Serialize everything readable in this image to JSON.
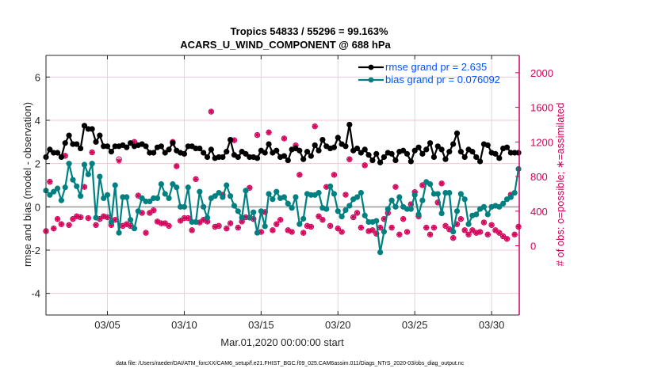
{
  "chart_data": {
    "type": "line",
    "title": "Tropics 54833 / 55296 = 99.163%",
    "subtitle": "ACARS_U_WIND_COMPONENT @ 688 hPa",
    "xlabel": "Mar.01,2020 00:00:00 start",
    "ylabel": "rmse and bias (model - observation)",
    "ylabel_right": "# of obs: o=possible; ∗=assimilated",
    "footer": "data file: /Users/raeder/DAI/ATM_forcXX/CAM6_setup/f.e21.FHIST_BGC.f09_025.CAM6assim.011/Diags_NTrS_2020-03/obs_diag_output.nc",
    "xlim": [
      1.0,
      31.8
    ],
    "ylim": [
      -5,
      7
    ],
    "ylim_right": [
      -800,
      2200
    ],
    "x_ticks": [
      {
        "value": 5,
        "label": "03/05"
      },
      {
        "value": 10,
        "label": "03/10"
      },
      {
        "value": 15,
        "label": "03/15"
      },
      {
        "value": 20,
        "label": "03/20"
      },
      {
        "value": 25,
        "label": "03/25"
      },
      {
        "value": 30,
        "label": "03/30"
      }
    ],
    "y_ticks": [
      {
        "value": 6,
        "label": "6"
      },
      {
        "value": 4,
        "label": "4"
      },
      {
        "value": 2,
        "label": "2"
      },
      {
        "value": 0,
        "label": "0"
      },
      {
        "value": -2,
        "label": "-2"
      },
      {
        "value": -4,
        "label": "-4"
      }
    ],
    "y_ticks_right": [
      {
        "value": 2000,
        "label": "2000"
      },
      {
        "value": 1600,
        "label": "1600"
      },
      {
        "value": 1200,
        "label": "1200"
      },
      {
        "value": 800,
        "label": "800"
      },
      {
        "value": 400,
        "label": "400"
      },
      {
        "value": 0,
        "label": "0"
      }
    ],
    "grid": true,
    "legend_position": "top-right",
    "colors": {
      "rmse": "#000000",
      "bias": "#008080",
      "obs": "#d3005a",
      "zero_line": "#b0b0b0",
      "grid": "#d9d9d9",
      "hgrid": "#f2c6d6",
      "legend_text": "#0055ff"
    },
    "series": [
      {
        "name": "rmse grand pr = 2.635",
        "key": "rmse",
        "axis": "left",
        "x_start": 1.0,
        "x_step": 0.25,
        "values": [
          2.3,
          2.65,
          2.5,
          2.5,
          2.3,
          2.95,
          3.3,
          2.9,
          2.9,
          2.7,
          3.75,
          3.6,
          3.6,
          3.0,
          3.3,
          2.8,
          2.8,
          2.55,
          2.8,
          2.8,
          2.85,
          2.75,
          2.95,
          2.8,
          2.85,
          2.9,
          2.8,
          2.5,
          2.5,
          2.75,
          2.8,
          2.5,
          2.65,
          2.95,
          2.6,
          2.5,
          2.45,
          2.8,
          2.8,
          2.7,
          2.7,
          2.5,
          2.3,
          2.65,
          2.25,
          2.3,
          2.3,
          2.55,
          3.1,
          2.4,
          2.3,
          2.55,
          2.45,
          2.3,
          2.3,
          2.25,
          2.6,
          2.5,
          2.9,
          2.5,
          2.6,
          2.3,
          2.35,
          2.15,
          2.65,
          2.7,
          2.6,
          2.2,
          2.55,
          2.35,
          2.85,
          2.6,
          3.1,
          2.8,
          2.7,
          2.75,
          3.2,
          2.9,
          2.8,
          3.8,
          2.6,
          2.7,
          2.5,
          2.65,
          2.4,
          2.15,
          2.45,
          2.05,
          2.3,
          2.5,
          2.45,
          2.15,
          2.55,
          2.6,
          2.45,
          2.1,
          2.6,
          2.75,
          2.45,
          2.65,
          2.95,
          2.3,
          2.8,
          2.65,
          2.2,
          2.55,
          2.9,
          3.4,
          2.55,
          2.3,
          2.65,
          2.55,
          2.3,
          2.1,
          2.9,
          2.85,
          2.5,
          2.45,
          2.25,
          2.7,
          2.75,
          2.5,
          2.5,
          2.5
        ]
      },
      {
        "name": "bias grand pr = 0.076092",
        "key": "bias",
        "axis": "left",
        "x_start": 1.0,
        "x_step": 0.25,
        "values": [
          0.75,
          0.55,
          0.7,
          0.85,
          0.3,
          0.9,
          2.0,
          1.25,
          0.95,
          0.5,
          1.95,
          1.5,
          2.0,
          -0.5,
          1.4,
          0.4,
          0.55,
          -0.7,
          1.0,
          -1.2,
          0.45,
          0.45,
          -0.6,
          -1.0,
          -0.2,
          0.4,
          0.25,
          0.25,
          0.4,
          0.4,
          1.05,
          0.6,
          0.4,
          1.05,
          0.9,
          0.0,
          0.0,
          0.9,
          -0.7,
          -0.7,
          0.7,
          0.0,
          -0.5,
          0.4,
          0.5,
          0.65,
          0.45,
          1.0,
          0.5,
          0.05,
          -0.2,
          -0.5,
          0.75,
          -0.5,
          -0.25,
          -1.2,
          -0.2,
          -0.9,
          0.6,
          0.35,
          0.7,
          0.4,
          0.45,
          0.15,
          -0.05,
          0.45,
          -0.8,
          -0.55,
          0.6,
          0.55,
          0.55,
          0.65,
          -0.05,
          -0.1,
          0.95,
          0.6,
          -0.2,
          -0.45,
          -0.15,
          0.05,
          0.35,
          0.45,
          0.65,
          -0.4,
          -0.7,
          -0.7,
          -0.65,
          -2.1,
          -1.15,
          -0.1,
          0.3,
          0.0,
          0.45,
          0.0,
          -0.1,
          -0.1,
          0.55,
          -0.35,
          0.3,
          1.15,
          1.05,
          0.6,
          0.6,
          -0.3,
          0.65,
          0.65,
          -1.15,
          -0.2,
          0.6,
          0.35,
          -0.8,
          -0.4,
          -0.35,
          -0.1,
          0.0,
          -0.35,
          0.0,
          0.05,
          0.0,
          0.15,
          0.35,
          0.45,
          0.65,
          1.75
        ]
      }
    ],
    "obs_possible": {
      "name": "possible",
      "marker": "o",
      "axis": "right",
      "x_start": 1.0,
      "x_step": 0.25,
      "values": [
        170,
        740,
        200,
        310,
        250,
        1040,
        240,
        310,
        340,
        330,
        680,
        320,
        1080,
        240,
        310,
        340,
        330,
        240,
        300,
        1000,
        230,
        250,
        230,
        1200,
        580,
        380,
        150,
        380,
        410,
        280,
        260,
        260,
        230,
        1200,
        920,
        290,
        320,
        320,
        180,
        770,
        270,
        300,
        280,
        1550,
        220,
        230,
        590,
        200,
        260,
        1220,
        210,
        280,
        330,
        670,
        310,
        1280,
        160,
        390,
        1310,
        180,
        250,
        300,
        1240,
        180,
        160,
        1160,
        820,
        150,
        230,
        220,
        1380,
        340,
        300,
        680,
        230,
        820,
        200,
        160,
        590,
        1000,
        330,
        380,
        210,
        930,
        170,
        180,
        140,
        210,
        310,
        380,
        210,
        680,
        130,
        310,
        160,
        480,
        620,
        340,
        700,
        210,
        130,
        210,
        500,
        720,
        230,
        190,
        90,
        250,
        310,
        180,
        130,
        180,
        150,
        160,
        270,
        130,
        240,
        180,
        150,
        110,
        80,
        590,
        130,
        220,
        210,
        0
      ]
    },
    "obs_assimilated": {
      "name": "assimilated",
      "marker": "*",
      "axis": "right",
      "x_start": 1.0,
      "x_step": 0.25,
      "values": [
        170,
        740,
        200,
        310,
        250,
        1040,
        240,
        310,
        340,
        330,
        680,
        320,
        1080,
        240,
        310,
        340,
        330,
        240,
        300,
        980,
        230,
        250,
        230,
        1200,
        580,
        380,
        150,
        380,
        410,
        280,
        260,
        260,
        230,
        1200,
        920,
        290,
        320,
        320,
        180,
        770,
        270,
        300,
        280,
        1550,
        220,
        230,
        590,
        200,
        260,
        1220,
        210,
        280,
        330,
        670,
        310,
        1280,
        160,
        390,
        1310,
        180,
        250,
        300,
        1240,
        180,
        160,
        1160,
        820,
        150,
        230,
        220,
        1380,
        340,
        300,
        680,
        230,
        820,
        200,
        160,
        590,
        1000,
        330,
        380,
        210,
        930,
        170,
        180,
        140,
        210,
        310,
        380,
        210,
        680,
        130,
        310,
        160,
        480,
        620,
        340,
        700,
        210,
        130,
        210,
        500,
        720,
        230,
        190,
        90,
        250,
        310,
        180,
        130,
        180,
        150,
        160,
        270,
        130,
        240,
        180,
        150,
        110,
        80,
        590,
        130,
        220,
        210,
        0
      ]
    },
    "legend": [
      {
        "label": "rmse grand pr = 2.635",
        "key": "rmse"
      },
      {
        "label": "bias grand pr = 0.076092",
        "key": "bias"
      }
    ]
  }
}
